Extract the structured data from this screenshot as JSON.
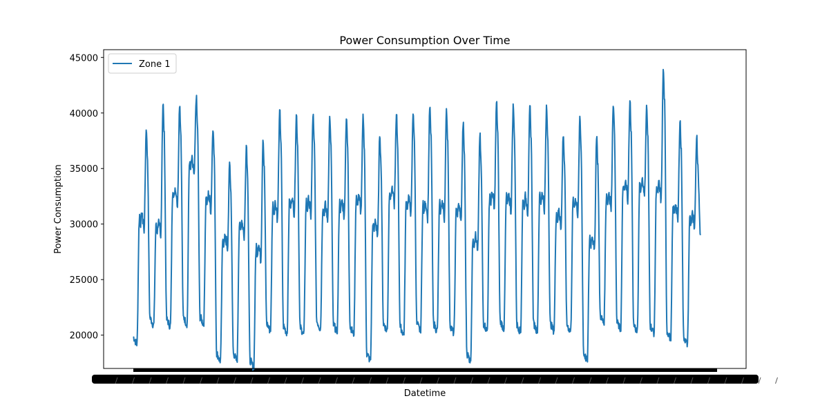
{
  "chart_data": {
    "type": "line",
    "title": "Power Consumption Over Time",
    "xlabel": "Datetime",
    "ylabel": "Power Consumption",
    "ylim": [
      17000,
      45700
    ],
    "yticks": [
      20000,
      25000,
      30000,
      35000,
      40000,
      45000
    ],
    "ytick_labels": [
      "20000",
      "25000",
      "30000",
      "35000",
      "40000",
      "45000"
    ],
    "x_tick_labels_note": "overlapping, illegible",
    "x_range": [
      0,
      35
    ],
    "grid": false,
    "legend": {
      "position": "top-left",
      "entries": [
        "Zone 1"
      ]
    },
    "series": [
      {
        "name": "Zone 1",
        "color": "#1f77b4",
        "days": [
          {
            "night": 19800,
            "plateau": 30500,
            "peak": 38700,
            "trough": 21600
          },
          {
            "night": 21500,
            "plateau": 29800,
            "peak": 40900,
            "trough": 21400
          },
          {
            "night": 21400,
            "plateau": 32800,
            "peak": 40900,
            "trough": 21600
          },
          {
            "night": 21600,
            "plateau": 35400,
            "peak": 41500,
            "trough": 21600
          },
          {
            "night": 21600,
            "plateau": 32300,
            "peak": 38800,
            "trough": 18300
          },
          {
            "night": 18300,
            "plateau": 28600,
            "peak": 35600,
            "trough": 20600
          },
          {
            "night": 18300,
            "plateau": 29900,
            "peak": 37200,
            "trough": 17700
          },
          {
            "night": 17700,
            "plateau": 27800,
            "peak": 37800,
            "trough": 21000
          },
          {
            "night": 21000,
            "plateau": 31500,
            "peak": 40200,
            "trough": 20800
          },
          {
            "night": 20800,
            "plateau": 32000,
            "peak": 39900,
            "trough": 20700
          },
          {
            "night": 20700,
            "plateau": 31800,
            "peak": 39900,
            "trough": 21200
          },
          {
            "night": 21200,
            "plateau": 31300,
            "peak": 39700,
            "trough": 20900
          },
          {
            "night": 20900,
            "plateau": 31700,
            "peak": 39700,
            "trough": 20700
          },
          {
            "night": 20700,
            "plateau": 32200,
            "peak": 39700,
            "trough": 18300
          },
          {
            "night": 18300,
            "plateau": 29900,
            "peak": 38200,
            "trough": 21000
          },
          {
            "night": 21000,
            "plateau": 32800,
            "peak": 39800,
            "trough": 20700
          },
          {
            "night": 20700,
            "plateau": 32000,
            "peak": 40200,
            "trough": 21000
          },
          {
            "night": 21000,
            "plateau": 31600,
            "peak": 40600,
            "trough": 21000
          },
          {
            "night": 21000,
            "plateau": 31600,
            "peak": 40300,
            "trough": 20800
          },
          {
            "night": 20800,
            "plateau": 31300,
            "peak": 39100,
            "trough": 18300
          },
          {
            "night": 18300,
            "plateau": 28600,
            "peak": 38100,
            "trough": 21000
          },
          {
            "night": 21000,
            "plateau": 32400,
            "peak": 41000,
            "trough": 21200
          },
          {
            "night": 21200,
            "plateau": 32200,
            "peak": 40700,
            "trough": 20900
          },
          {
            "night": 20900,
            "plateau": 32100,
            "peak": 40600,
            "trough": 21000
          },
          {
            "night": 21000,
            "plateau": 32400,
            "peak": 40500,
            "trough": 21000
          },
          {
            "night": 21000,
            "plateau": 30800,
            "peak": 38200,
            "trough": 20900
          },
          {
            "night": 20900,
            "plateau": 31900,
            "peak": 39500,
            "trough": 18300
          },
          {
            "night": 18300,
            "plateau": 28600,
            "peak": 38100,
            "trough": 21700
          },
          {
            "night": 21700,
            "plateau": 32400,
            "peak": 41000,
            "trough": 21100
          },
          {
            "night": 21100,
            "plateau": 33300,
            "peak": 41000,
            "trough": 20900
          },
          {
            "night": 20900,
            "plateau": 33600,
            "peak": 40600,
            "trough": 20800
          },
          {
            "night": 20800,
            "plateau": 33200,
            "peak": 43900,
            "trough": 20300
          },
          {
            "night": 20300,
            "plateau": 31400,
            "peak": 39400,
            "trough": 19800
          },
          {
            "night": 19800,
            "plateau": 30500,
            "peak": 38000,
            "trough": 29000
          }
        ]
      }
    ]
  }
}
